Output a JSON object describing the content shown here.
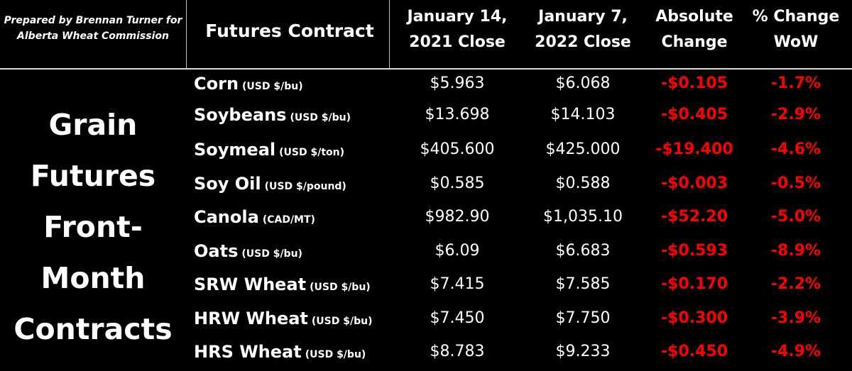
{
  "credit": {
    "line1": "Prepared by Brennan Turner for",
    "line2": "Alberta Wheat Commission"
  },
  "headers": {
    "contract": "Futures Contract",
    "col1": {
      "line1": "January 14,",
      "line2": "2021 Close"
    },
    "col2": {
      "line1": "January 7,",
      "line2": "2022 Close"
    },
    "col3": {
      "line1": "Absolute",
      "line2": "Change"
    },
    "col4": {
      "line1": "% Change",
      "line2": "WoW"
    }
  },
  "side_label": {
    "lines": [
      "Grain",
      "Futures",
      "Front-",
      "Month",
      "Contracts"
    ]
  },
  "colors": {
    "background": "#000000",
    "text": "#ffffff",
    "negative": "#ff0000"
  },
  "rows": [
    {
      "name": "Corn",
      "unit": "(USD $/bu)",
      "prev": "$5.963",
      "curr": "$6.068",
      "abs": "-$0.105",
      "pct": "-1.7%"
    },
    {
      "name": "Soybeans",
      "unit": "(USD $/bu)",
      "prev": "$13.698",
      "curr": "$14.103",
      "abs": "-$0.405",
      "pct": "-2.9%"
    },
    {
      "name": "Soymeal",
      "unit": "(USD $/ton)",
      "prev": "$405.600",
      "curr": "$425.000",
      "abs": "-$19.400",
      "pct": "-4.6%"
    },
    {
      "name": "Soy Oil",
      "unit": "(USD $/pound)",
      "prev": "$0.585",
      "curr": "$0.588",
      "abs": "-$0.003",
      "pct": "-0.5%"
    },
    {
      "name": "Canola",
      "unit": "(CAD/MT)",
      "prev": "$982.90",
      "curr": "$1,035.10",
      "abs": "-$52.20",
      "pct": "-5.0%"
    },
    {
      "name": "Oats",
      "unit": "(USD $/bu)",
      "prev": "$6.09",
      "curr": "$6.683",
      "abs": "-$0.593",
      "pct": "-8.9%"
    },
    {
      "name": "SRW Wheat",
      "unit": "(USD $/bu)",
      "prev": "$7.415",
      "curr": "$7.585",
      "abs": "-$0.170",
      "pct": "-2.2%"
    },
    {
      "name": "HRW Wheat",
      "unit": "(USD $/bu)",
      "prev": "$7.450",
      "curr": "$7.750",
      "abs": "-$0.300",
      "pct": "-3.9%"
    },
    {
      "name": "HRS Wheat",
      "unit": "(USD $/bu)",
      "prev": "$8.783",
      "curr": "$9.233",
      "abs": "-$0.450",
      "pct": "-4.9%"
    }
  ]
}
